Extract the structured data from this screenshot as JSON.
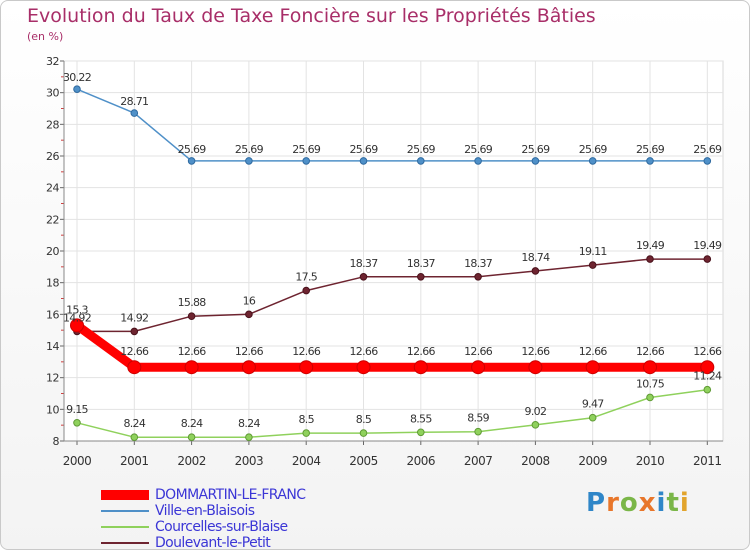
{
  "chart_data": {
    "type": "line",
    "title": "Evolution du Taux de Taxe Foncière sur les Propriétés Bâties",
    "subtitle": "(en %)",
    "xlabel": "",
    "ylabel": "",
    "ylim": [
      8,
      32
    ],
    "yticks": [
      "8",
      "10",
      "12",
      "14",
      "16",
      "18",
      "20",
      "22",
      "24",
      "26",
      "28",
      "30",
      "32"
    ],
    "grid": true,
    "legend_position": "bottom-left",
    "categories": [
      "2000",
      "2001",
      "2002",
      "2003",
      "2004",
      "2005",
      "2006",
      "2007",
      "2008",
      "2009",
      "2010",
      "2011"
    ],
    "series": [
      {
        "name": "DOMMARTIN-LE-FRANC",
        "color": "#ff0000",
        "values": [
          15.3,
          12.66,
          12.66,
          12.66,
          12.66,
          12.66,
          12.66,
          12.66,
          12.66,
          12.66,
          12.66,
          12.66
        ],
        "labels": [
          "15.3",
          "12.66",
          "12.66",
          "12.66",
          "12.66",
          "12.66",
          "12.66",
          "12.66",
          "12.66",
          "12.66",
          "12.66",
          "12.66"
        ]
      },
      {
        "name": "Ville-en-Blaisois",
        "color": "#4f90c8",
        "values": [
          30.22,
          28.71,
          25.69,
          25.69,
          25.69,
          25.69,
          25.69,
          25.69,
          25.69,
          25.69,
          25.69,
          25.69
        ],
        "labels": [
          "30.22",
          "28.71",
          "25.69",
          "25.69",
          "25.69",
          "25.69",
          "25.69",
          "25.69",
          "25.69",
          "25.69",
          "25.69",
          "25.69"
        ]
      },
      {
        "name": "Courcelles-sur-Blaise",
        "color": "#8fd15c",
        "values": [
          9.15,
          8.24,
          8.24,
          8.24,
          8.5,
          8.5,
          8.55,
          8.59,
          9.02,
          9.47,
          10.75,
          11.24
        ],
        "labels": [
          "9.15",
          "8.24",
          "8.24",
          "8.24",
          "8.5",
          "8.5",
          "8.55",
          "8.59",
          "9.02",
          "9.47",
          "10.75",
          "11.24"
        ]
      },
      {
        "name": "Doulevant-le-Petit",
        "color": "#6e2430",
        "values": [
          14.92,
          14.92,
          15.88,
          16,
          17.5,
          18.37,
          18.37,
          18.37,
          18.74,
          19.11,
          19.49,
          19.49
        ],
        "labels": [
          "14.92",
          "14.92",
          "15.88",
          "16",
          "17.5",
          "18.37",
          "18.37",
          "18.37",
          "18.74",
          "19.11",
          "19.49",
          "19.49"
        ]
      }
    ]
  },
  "legend": {
    "items": [
      "DOMMARTIN-LE-FRANC",
      "Ville-en-Blaisois",
      "Courcelles-sur-Blaise",
      "Doulevant-le-Petit"
    ]
  },
  "logo": {
    "p": "P",
    "r": "r",
    "o": "o",
    "x": "x",
    "i": "i",
    "t": "t",
    "i2": "i"
  }
}
